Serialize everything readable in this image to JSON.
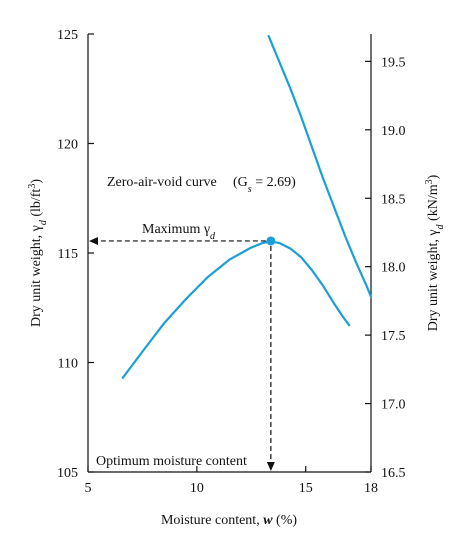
{
  "chart_data": {
    "type": "line",
    "xlabel": "Moisture content, w (%)",
    "ylabel_left": "Dry unit weight, γd (lb/ft³)",
    "ylabel_right": "Dry unit weight, γd (kN/m³)",
    "xlim": [
      5,
      18
    ],
    "ylim_left": [
      105,
      125
    ],
    "ylim_right": [
      16.5,
      19.7
    ],
    "x_ticks": [
      "5",
      "10",
      "15",
      "18"
    ],
    "y_ticks_left": [
      "105",
      "110",
      "115",
      "120",
      "125"
    ],
    "y_ticks_right": [
      "16.5",
      "17.0",
      "17.5",
      "18.0",
      "18.5",
      "19.0",
      "19.5"
    ],
    "grid": false,
    "series": [
      {
        "key": "compaction",
        "color": "#1a9fd6",
        "x": [
          6.6,
          7.5,
          8.5,
          9.5,
          10.5,
          11.5,
          12.5,
          13.0,
          13.4,
          13.8,
          14.3,
          14.8,
          15.3,
          15.8,
          16.3,
          16.7,
          17.0
        ],
        "y": [
          109.3,
          110.5,
          111.8,
          112.9,
          113.9,
          114.7,
          115.25,
          115.45,
          115.52,
          115.45,
          115.2,
          114.8,
          114.2,
          113.5,
          112.7,
          112.1,
          111.7
        ]
      },
      {
        "name": "Zero-air-void curve (Gs = 2.69)",
        "key": "zav",
        "color": "#1a9fd6",
        "x": [
          13.3,
          13.8,
          14.3,
          14.8,
          15.3,
          15.8,
          16.3,
          16.8,
          17.3,
          17.8,
          18.0
        ],
        "y": [
          124.9,
          123.7,
          122.5,
          121.2,
          119.8,
          118.4,
          117.1,
          115.8,
          114.6,
          113.5,
          113.0
        ]
      }
    ],
    "maximum_point": {
      "x": 13.4,
      "y": 115.55
    },
    "annotations": {
      "zav_label": "Zero-air-void curve",
      "zav_gs_label": "(Gs = 2.69)",
      "max_label": "Maximum γd",
      "omc_label": "Optimum moisture content"
    }
  }
}
